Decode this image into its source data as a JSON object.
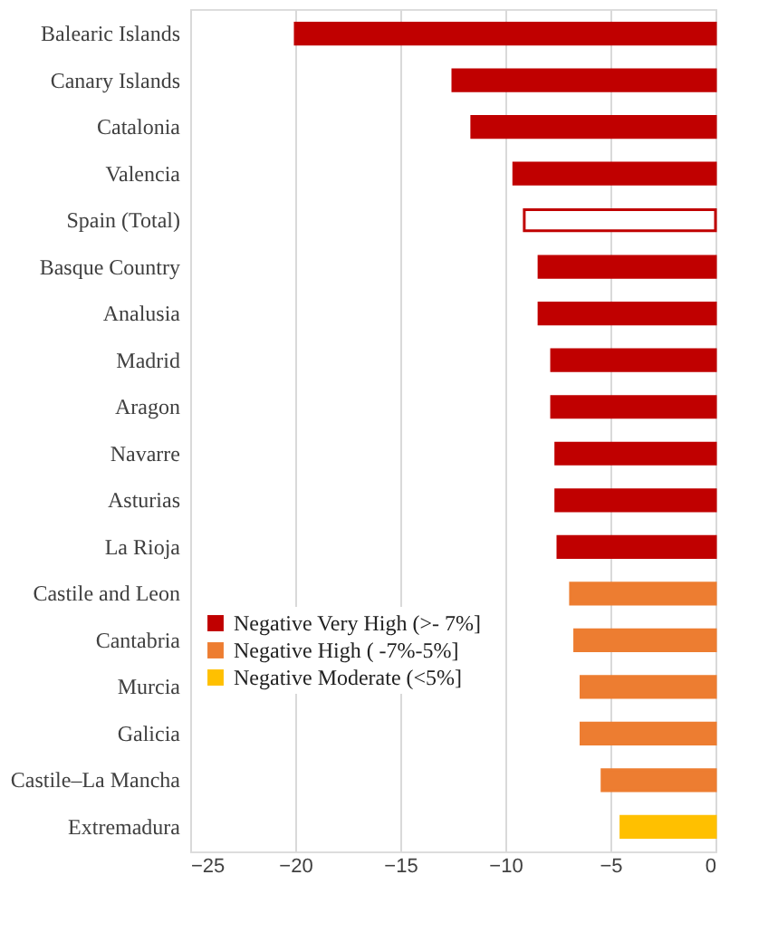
{
  "chart_data": {
    "type": "bar",
    "orientation": "horizontal",
    "categories": [
      "Balearic Islands",
      "Canary Islands",
      "Catalonia",
      "Valencia",
      "Spain (Total)",
      "Basque Country",
      "Analusia",
      "Madrid",
      "Aragon",
      "Navarre",
      "Asturias",
      "La Rioja",
      "Castile and Leon",
      "Cantabria",
      "Murcia",
      "Galicia",
      "Castile–La Mancha",
      "Extremadura"
    ],
    "series": [
      {
        "name": "Negative Very High (>- 7%]",
        "color": "#c00000",
        "colors": [
          "#c00000",
          "#c00000",
          "#c00000",
          "#c00000",
          "#ffffff",
          "#c00000",
          "#c00000",
          "#c00000",
          "#c00000",
          "#c00000",
          "#c00000",
          "#c00000",
          null,
          null,
          null,
          null,
          null,
          null
        ],
        "values": [
          -20.0,
          -12.5,
          -11.6,
          -9.6,
          -9.1,
          -8.4,
          -8.4,
          -7.8,
          -7.8,
          -7.6,
          -7.6,
          -7.5,
          null,
          null,
          null,
          null,
          null,
          null
        ]
      },
      {
        "name": "Negative High ( -7%-5%]",
        "color": "#ed7d31",
        "values": [
          null,
          null,
          null,
          null,
          null,
          null,
          null,
          null,
          null,
          null,
          null,
          null,
          -6.9,
          -6.7,
          -6.4,
          -6.4,
          -5.4,
          null
        ]
      },
      {
        "name": "Negative Moderate (<5%]",
        "color": "#ffc000",
        "values": [
          null,
          null,
          null,
          null,
          null,
          null,
          null,
          null,
          null,
          null,
          null,
          null,
          null,
          null,
          null,
          null,
          null,
          -4.5
        ]
      }
    ],
    "xlim": [
      -25,
      0
    ],
    "xticks": [
      -25,
      -20,
      -15,
      -10,
      -5,
      0
    ],
    "grid": "x",
    "legend": "left"
  }
}
